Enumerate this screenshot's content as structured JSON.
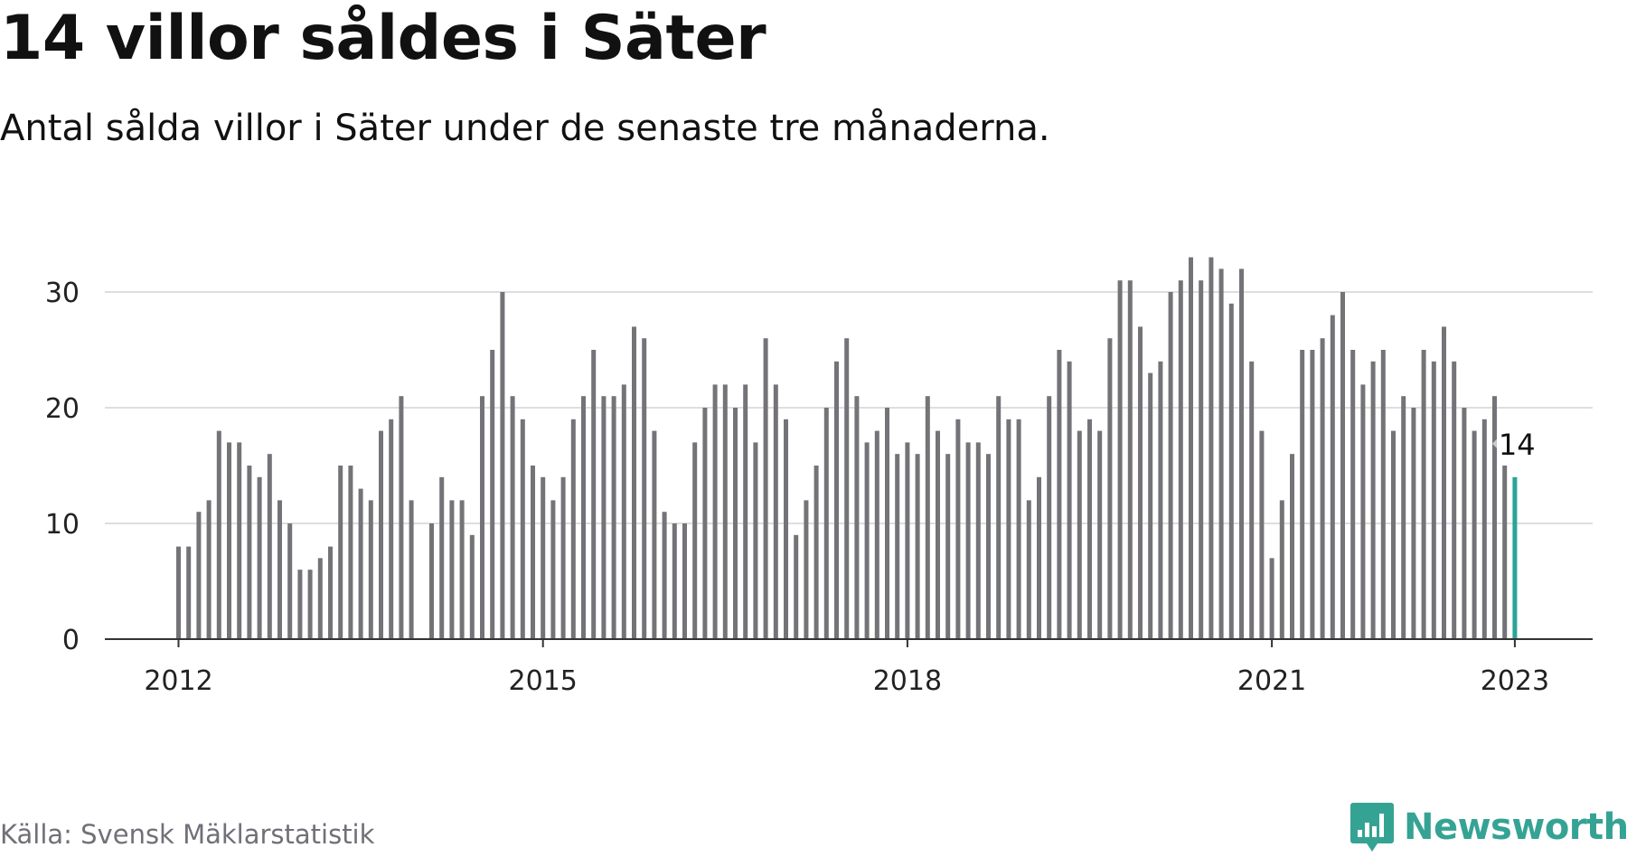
{
  "title": "14 villor såldes i Säter",
  "subtitle": "Antal sålda villor i Säter under de senaste tre månaderna.",
  "source": "Källa: Svensk Mäklarstatistik",
  "brand": "Newsworthy",
  "colors": {
    "bar": "#737378",
    "highlight": "#2aa596",
    "grid": "#dedede",
    "axis": "#333333",
    "text": "#222222",
    "brand": "#35a394"
  },
  "icons": {
    "brand": "newsworthy-logo-icon"
  },
  "chart_data": {
    "type": "bar",
    "x_start": "2012-01",
    "x_end": "2023-01",
    "x_tick_labels": [
      "2012",
      "2015",
      "2018",
      "2021",
      "2023"
    ],
    "y_ticks": [
      0,
      10,
      20,
      30
    ],
    "ylim": [
      0,
      34
    ],
    "grid": true,
    "highlight_label": "14",
    "values": [
      8,
      8,
      11,
      12,
      18,
      17,
      17,
      15,
      14,
      16,
      12,
      10,
      6,
      6,
      7,
      8,
      15,
      15,
      13,
      12,
      18,
      19,
      21,
      12,
      null,
      10,
      14,
      12,
      12,
      9,
      21,
      25,
      30,
      21,
      19,
      15,
      14,
      12,
      14,
      19,
      21,
      25,
      21,
      21,
      22,
      27,
      26,
      18,
      11,
      10,
      10,
      17,
      20,
      22,
      22,
      20,
      22,
      17,
      26,
      22,
      19,
      9,
      12,
      15,
      20,
      24,
      26,
      21,
      17,
      18,
      20,
      16,
      17,
      16,
      21,
      18,
      16,
      19,
      17,
      17,
      16,
      21,
      19,
      19,
      12,
      14,
      21,
      25,
      24,
      18,
      19,
      18,
      26,
      31,
      31,
      27,
      23,
      24,
      30,
      31,
      33,
      31,
      33,
      32,
      29,
      32,
      24,
      18,
      7,
      12,
      16,
      25,
      25,
      26,
      28,
      30,
      25,
      22,
      24,
      25,
      18,
      21,
      20,
      25,
      24,
      27,
      24,
      20,
      18,
      19,
      21,
      15,
      14
    ]
  }
}
